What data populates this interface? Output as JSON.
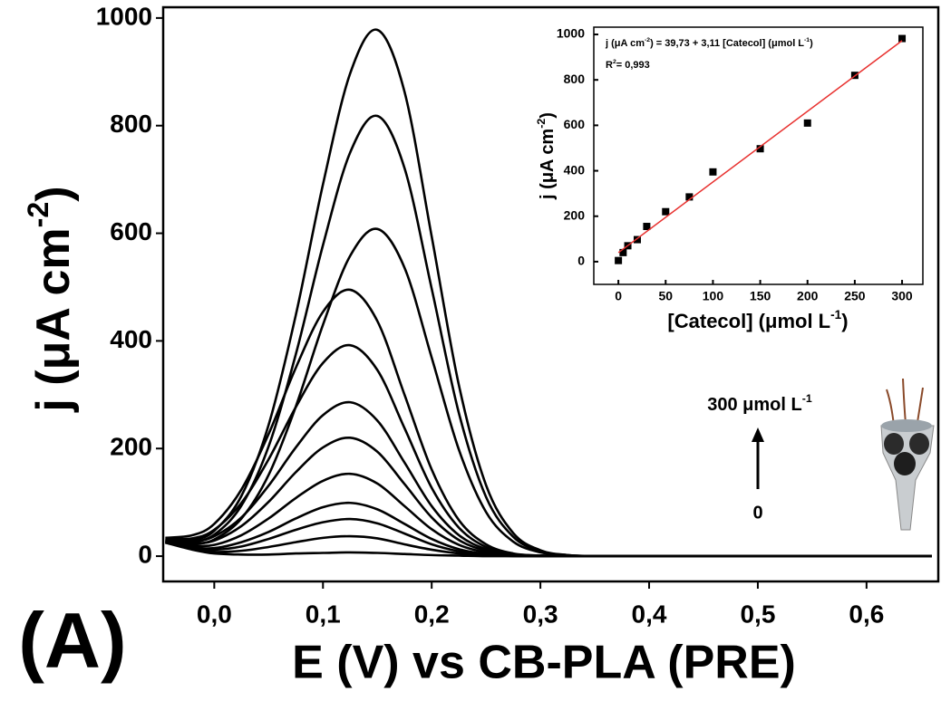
{
  "chart_data": [
    {
      "type": "line",
      "xlabel": "E (V) vs CB-PLA (PRE)",
      "ylabel": [
        "j  (μA cm",
        "-2",
        ")"
      ],
      "x": [
        -0.045,
        -0.02,
        0,
        0.025,
        0.05,
        0.075,
        0.1,
        0.125,
        0.15,
        0.175,
        0.2,
        0.225,
        0.25,
        0.275,
        0.3,
        0.325,
        0.35,
        0.4,
        0.45,
        0.5,
        0.55,
        0.6,
        0.66
      ],
      "xlim": [
        -0.047,
        0.666
      ],
      "ylim": [
        -47,
        1020
      ],
      "xticks": [
        {
          "value": 0,
          "label": "0,0"
        },
        {
          "value": 0.1,
          "label": "0,1"
        },
        {
          "value": 0.2,
          "label": "0,2"
        },
        {
          "value": 0.3,
          "label": "0,3"
        },
        {
          "value": 0.4,
          "label": "0,4"
        },
        {
          "value": 0.5,
          "label": "0,5"
        },
        {
          "value": 0.6,
          "label": "0,6"
        }
      ],
      "yticks": [
        0,
        200,
        400,
        600,
        800,
        1000
      ],
      "series": [
        {
          "color": "#000000",
          "values": [
            25,
            12,
            5,
            3,
            3,
            5,
            6,
            7,
            6,
            4,
            2,
            1,
            0,
            0,
            0,
            0,
            0,
            0,
            0,
            0,
            0,
            0,
            0
          ]
        },
        {
          "color": "#000000",
          "values": [
            26,
            14,
            8,
            10,
            17,
            26,
            34,
            37,
            33,
            22,
            12,
            5,
            2,
            0,
            0,
            0,
            0,
            0,
            0,
            0,
            0,
            0,
            0
          ]
        },
        {
          "color": "#000000",
          "values": [
            26,
            16,
            12,
            18,
            32,
            49,
            63,
            69,
            61,
            42,
            22,
            9,
            3,
            1,
            0,
            0,
            0,
            0,
            0,
            0,
            0,
            0,
            0
          ]
        },
        {
          "color": "#000000",
          "values": [
            27,
            17,
            15,
            26,
            45,
            70,
            91,
            99,
            87,
            60,
            32,
            13,
            4,
            1,
            0,
            0,
            0,
            0,
            0,
            0,
            0,
            0,
            0
          ]
        },
        {
          "color": "#000000",
          "values": [
            28,
            20,
            21,
            39,
            70,
            108,
            140,
            153,
            135,
            93,
            50,
            21,
            7,
            2,
            0,
            0,
            0,
            0,
            0,
            0,
            0,
            0,
            0
          ]
        },
        {
          "color": "#000000",
          "values": [
            29,
            24,
            29,
            56,
            101,
            156,
            202,
            220,
            194,
            134,
            72,
            30,
            10,
            2,
            0,
            0,
            0,
            0,
            0,
            0,
            0,
            0,
            0
          ]
        },
        {
          "color": "#000000",
          "values": [
            30,
            27,
            37,
            72,
            131,
            202,
            262,
            286,
            252,
            174,
            93,
            39,
            13,
            3,
            1,
            0,
            0,
            0,
            0,
            0,
            0,
            0,
            0
          ]
        },
        {
          "color": "#000000",
          "values": [
            32,
            33,
            49,
            99,
            180,
            277,
            359,
            392,
            346,
            238,
            127,
            53,
            17,
            4,
            1,
            0,
            0,
            0,
            0,
            0,
            0,
            0,
            0
          ]
        },
        {
          "color": "#000000",
          "values": [
            34,
            39,
            60,
            124,
            227,
            350,
            454,
            495,
            437,
            300,
            161,
            67,
            22,
            5,
            1,
            0,
            0,
            0,
            0,
            0,
            0,
            0,
            0
          ]
        },
        {
          "color": "#000000",
          "values": [
            28,
            23,
            31,
            70,
            151,
            278,
            430,
            558,
            608,
            536,
            369,
            198,
            82,
            27,
            7,
            1,
            0,
            0,
            0,
            0,
            0,
            0,
            0
          ]
        },
        {
          "color": "#000000",
          "values": [
            29,
            27,
            40,
            94,
            204,
            375,
            578,
            750,
            818,
            721,
            497,
            266,
            110,
            36,
            9,
            2,
            0,
            0,
            0,
            0,
            0,
            0,
            0
          ]
        },
        {
          "color": "#000000",
          "values": [
            30,
            30,
            47,
            112,
            244,
            448,
            691,
            897,
            978,
            863,
            594,
            318,
            132,
            43,
            11,
            2,
            0,
            0,
            0,
            0,
            0,
            0,
            0
          ]
        }
      ],
      "annotations": {
        "panel": "(A)",
        "arrow_top": [
          "300 μmol L",
          "-1"
        ],
        "arrow_bottom": "0"
      }
    },
    {
      "type": "scatter",
      "xlabel": [
        "[Catecol] (μmol L",
        "-1",
        ")"
      ],
      "ylabel": [
        "j (μA cm",
        "-2",
        ")"
      ],
      "equation": [
        "j (μA cm",
        "-2",
        ") = 39,73 + 3,11 [Catecol] (μmol L",
        "-1",
        ")"
      ],
      "r2": [
        "R",
        "2",
        "= 0,993"
      ],
      "xlim": [
        -26,
        322
      ],
      "ylim": [
        -100,
        1032
      ],
      "xticks": [
        0,
        50,
        100,
        150,
        200,
        250,
        300
      ],
      "yticks": [
        0,
        200,
        400,
        600,
        800,
        1000
      ],
      "series": [
        {
          "type": "scatter",
          "color": "#000000",
          "x": [
            0,
            5,
            10,
            20,
            30,
            50,
            75,
            100,
            150,
            200,
            250,
            300
          ],
          "values": [
            5,
            40,
            70,
            97,
            155,
            220,
            285,
            395,
            497,
            610,
            820,
            982
          ]
        },
        {
          "type": "line",
          "color": "#e8312f",
          "x": [
            0,
            300
          ],
          "values": [
            39.73,
            972.73
          ]
        }
      ]
    }
  ]
}
